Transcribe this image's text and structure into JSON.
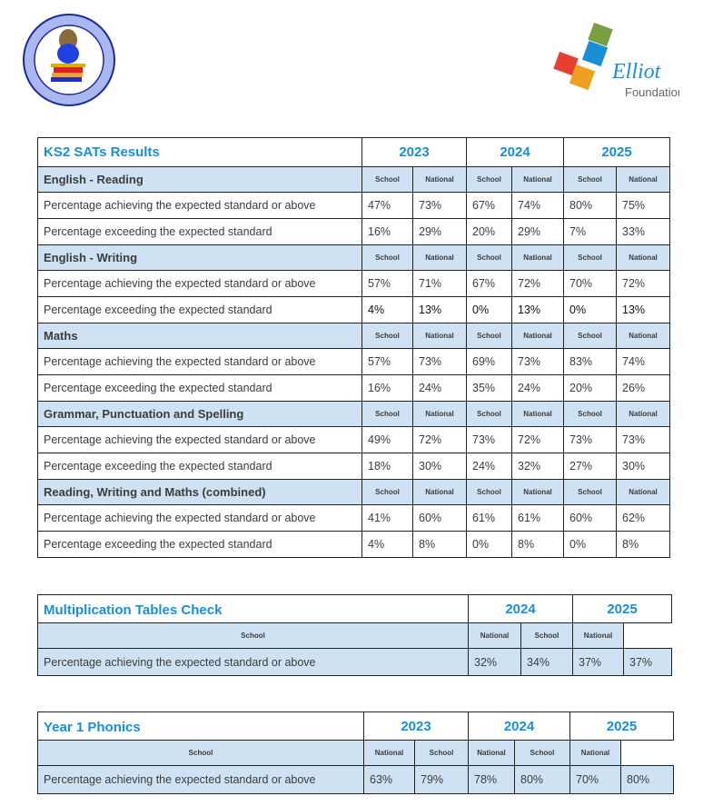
{
  "logos": {
    "school": "EYRESCROFT PRIMARY SCHOOL · BE KIND · TRY YOUR BEST",
    "trust": "Elliot Foundation"
  },
  "sub_labels": {
    "school": "School",
    "national": "National"
  },
  "ks2": {
    "title": "KS2 SATs Results",
    "years": [
      "2023",
      "2024",
      "2025"
    ],
    "sections": [
      {
        "name": "English - Reading",
        "rows": [
          {
            "label": "Percentage achieving the expected standard or above",
            "values": [
              "47%",
              "73%",
              "67%",
              "74%",
              "80%",
              "75%"
            ]
          },
          {
            "label": "Percentage exceeding the expected standard",
            "values": [
              "16%",
              "29%",
              "20%",
              "29%",
              "7%",
              "33%"
            ]
          }
        ]
      },
      {
        "name": "English - Writing",
        "rows": [
          {
            "label": "Percentage achieving the expected standard or above",
            "values": [
              "57%",
              "71%",
              "67%",
              "72%",
              "70%",
              "72%"
            ]
          },
          {
            "label": "Percentage exceeding the expected standard",
            "values": [
              "4%",
              "13%",
              "0%",
              "13%",
              "0%",
              "13%"
            ]
          }
        ]
      },
      {
        "name": "Maths",
        "rows": [
          {
            "label": "Percentage achieving the expected standard or above",
            "values": [
              "57%",
              "73%",
              "69%",
              "73%",
              "83%",
              "74%"
            ]
          },
          {
            "label": "Percentage exceeding the expected standard",
            "values": [
              "16%",
              "24%",
              "35%",
              "24%",
              "20%",
              "26%"
            ]
          }
        ]
      },
      {
        "name": "Grammar, Punctuation and Spelling",
        "rows": [
          {
            "label": "Percentage achieving the expected standard or above",
            "values": [
              "49%",
              "72%",
              "73%",
              "72%",
              "73%",
              "73%"
            ]
          },
          {
            "label": "Percentage exceeding the expected standard",
            "values": [
              "18%",
              "30%",
              "24%",
              "32%",
              "27%",
              "30%"
            ]
          }
        ]
      },
      {
        "name": "Reading, Writing and Maths (combined)",
        "rows": [
          {
            "label": "Percentage achieving the expected standard or above",
            "values": [
              "41%",
              "60%",
              "61%",
              "61%",
              "60%",
              "62%"
            ]
          },
          {
            "label": "Percentage exceeding the expected standard",
            "values": [
              "4%",
              "8%",
              "0%",
              "8%",
              "0%",
              "8%"
            ]
          }
        ]
      }
    ]
  },
  "mtc": {
    "title": "Multiplication Tables Check",
    "years": [
      "2024",
      "2025"
    ],
    "rows": [
      {
        "label": "Percentage achieving the expected standard or above",
        "values": [
          "32%",
          "34%",
          "37%",
          "37%"
        ]
      }
    ]
  },
  "phonics": {
    "title": "Year 1 Phonics",
    "years": [
      "2023",
      "2024",
      "2025"
    ],
    "rows": [
      {
        "label": "Percentage achieving the expected standard or above",
        "values": [
          "63%",
          "79%",
          "78%",
          "80%",
          "70%",
          "80%"
        ]
      }
    ]
  }
}
